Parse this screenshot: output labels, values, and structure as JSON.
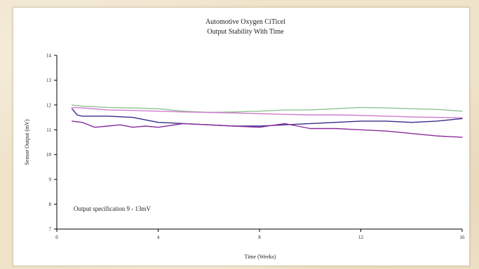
{
  "chart_data": {
    "type": "line",
    "title": "Automotive Oxygen CiTicel",
    "subtitle": "Output Stability With Time",
    "xlabel": "Time (Weeks)",
    "ylabel": "Sensor Output (mV)",
    "xlim": [
      0,
      16
    ],
    "ylim": [
      7,
      14
    ],
    "xticks": [
      0,
      4,
      8,
      12,
      16
    ],
    "yticks": [
      7,
      8,
      9,
      10,
      11,
      12,
      13,
      14
    ],
    "grid": false,
    "annotation": "Output specification 9 - 13mV",
    "colors": {
      "axis": "#000000",
      "green": "#8fc28f",
      "pink": "#d07ad0",
      "purple": "#8a2b9c",
      "navy": "#3a2a8a"
    },
    "series": [
      {
        "color": "#8fc28f",
        "x": [
          0.6,
          1.0,
          2.0,
          3.0,
          4.0,
          5.0,
          6.0,
          7.0,
          8.0,
          9.0,
          10.0,
          11.0,
          12.0,
          13.0,
          14.0,
          15.0,
          16.0
        ],
        "y": [
          12.0,
          11.95,
          11.9,
          11.88,
          11.85,
          11.75,
          11.7,
          11.72,
          11.75,
          11.8,
          11.8,
          11.85,
          11.9,
          11.88,
          11.85,
          11.82,
          11.75
        ]
      },
      {
        "color": "#d07ad0",
        "x": [
          0.6,
          1.0,
          2.0,
          3.0,
          4.0,
          5.0,
          6.0,
          7.0,
          8.0,
          9.0,
          10.0,
          11.0,
          12.0,
          13.0,
          14.0,
          15.0,
          16.0
        ],
        "y": [
          11.9,
          11.88,
          11.8,
          11.78,
          11.75,
          11.72,
          11.7,
          11.68,
          11.65,
          11.62,
          11.6,
          11.6,
          11.58,
          11.55,
          11.52,
          11.5,
          11.48
        ]
      },
      {
        "color": "#3a2a8a",
        "x": [
          0.6,
          0.8,
          1.0,
          2.0,
          3.0,
          4.0,
          5.0,
          6.0,
          7.0,
          8.0,
          9.0,
          10.0,
          11.0,
          12.0,
          13.0,
          14.0,
          15.0,
          16.0
        ],
        "y": [
          11.85,
          11.6,
          11.55,
          11.55,
          11.5,
          11.3,
          11.25,
          11.2,
          11.15,
          11.15,
          11.2,
          11.25,
          11.3,
          11.35,
          11.35,
          11.3,
          11.35,
          11.45
        ]
      },
      {
        "color": "#8a2b9c",
        "x": [
          0.6,
          1.0,
          1.5,
          2.0,
          2.5,
          3.0,
          3.5,
          4.0,
          5.0,
          6.0,
          7.0,
          8.0,
          9.0,
          9.5,
          10.0,
          11.0,
          12.0,
          13.0,
          14.0,
          15.0,
          16.0
        ],
        "y": [
          11.35,
          11.3,
          11.1,
          11.15,
          11.2,
          11.1,
          11.15,
          11.1,
          11.25,
          11.2,
          11.15,
          11.1,
          11.25,
          11.15,
          11.05,
          11.05,
          11.0,
          10.95,
          10.85,
          10.75,
          10.7
        ]
      }
    ]
  }
}
